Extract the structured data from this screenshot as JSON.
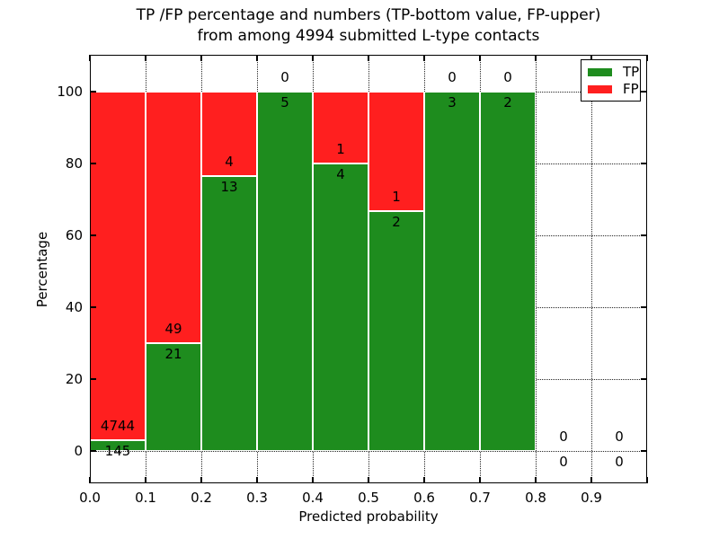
{
  "title": {
    "line1": "TP /FP percentage and numbers (TP-bottom value, FP-upper)",
    "line2": "from among 4994 submitted L-type contacts"
  },
  "axes": {
    "xlabel": "Predicted probability",
    "ylabel": "Percentage",
    "x_tick_labels": [
      "0.0",
      "0.1",
      "0.2",
      "0.3",
      "0.4",
      "0.5",
      "0.6",
      "0.7",
      "0.8",
      "0.9"
    ],
    "y_tick_labels": [
      "0",
      "20",
      "40",
      "60",
      "80",
      "100"
    ]
  },
  "legend": {
    "items": [
      {
        "label": "TP",
        "color": "#1e8c1e",
        "swatch": "green-swatch"
      },
      {
        "label": "FP",
        "color": "#ff1f1f",
        "swatch": "red-swatch"
      }
    ]
  },
  "chart_data": {
    "type": "bar",
    "stacked": true,
    "title": "TP /FP percentage and numbers (TP-bottom value, FP-upper) from among 4994 submitted L-type contacts",
    "xlabel": "Predicted probability",
    "ylabel": "Percentage",
    "total_contacts": 4994,
    "x_bins": [
      0.0,
      0.1,
      0.2,
      0.3,
      0.4,
      0.5,
      0.6,
      0.7,
      0.8,
      0.9
    ],
    "bin_width": 0.1,
    "series": [
      {
        "name": "TP",
        "color": "#1e8c1e",
        "counts": [
          145,
          21,
          13,
          5,
          4,
          2,
          3,
          2,
          0,
          0
        ]
      },
      {
        "name": "FP",
        "color": "#ff1f1f",
        "counts": [
          4744,
          49,
          4,
          0,
          1,
          1,
          0,
          0,
          0,
          0
        ]
      }
    ],
    "tp_percentages": [
      2.97,
      30.0,
      76.47,
      100.0,
      80.0,
      66.67,
      100.0,
      100.0,
      null,
      null
    ],
    "xlim": [
      0.0,
      1.0
    ],
    "ylim": [
      -9,
      110.25
    ],
    "y_ticks": [
      0,
      20,
      40,
      60,
      80,
      100
    ],
    "grid": true,
    "grid_style": "dotted",
    "legend_position": "upper right",
    "bar_edge_color": "#ffffff"
  }
}
